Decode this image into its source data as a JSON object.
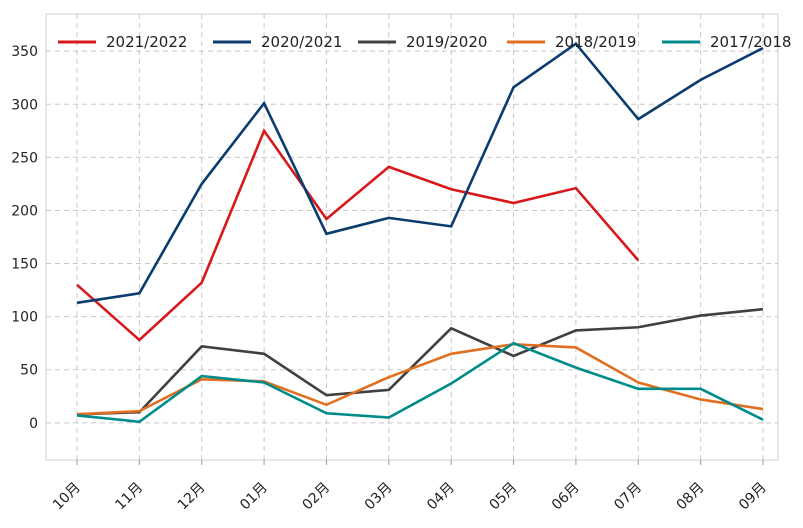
{
  "chart_data": {
    "type": "line",
    "title": "",
    "xlabel": "",
    "ylabel": "",
    "categories": [
      "10月",
      "11月",
      "12月",
      "01月",
      "02月",
      "03月",
      "04月",
      "05月",
      "06月",
      "07月",
      "08月",
      "09月"
    ],
    "ylim": [
      -35,
      385
    ],
    "yticks": [
      0,
      50,
      100,
      150,
      200,
      250,
      300,
      350
    ],
    "grid": true,
    "legend_position": "top",
    "series": [
      {
        "name": "2021/2022",
        "color": "#d7191c",
        "values": [
          130,
          78,
          132,
          275,
          192,
          241,
          220,
          207,
          221,
          153,
          null,
          null
        ]
      },
      {
        "name": "2020/2021",
        "color": "#0b3c6e",
        "values": [
          113,
          122,
          225,
          301,
          178,
          193,
          185,
          316,
          357,
          286,
          323,
          353
        ]
      },
      {
        "name": "2019/2020",
        "color": "#404040",
        "values": [
          8,
          10,
          72,
          65,
          26,
          31,
          89,
          63,
          87,
          90,
          101,
          107
        ]
      },
      {
        "name": "2018/2019",
        "color": "#e07020",
        "values": [
          8,
          11,
          41,
          39,
          17,
          43,
          65,
          74,
          71,
          38,
          22,
          13
        ]
      },
      {
        "name": "2017/2018",
        "color": "#008b8b",
        "values": [
          7,
          1,
          44,
          38,
          9,
          5,
          37,
          75,
          52,
          32,
          32,
          3
        ]
      }
    ]
  }
}
